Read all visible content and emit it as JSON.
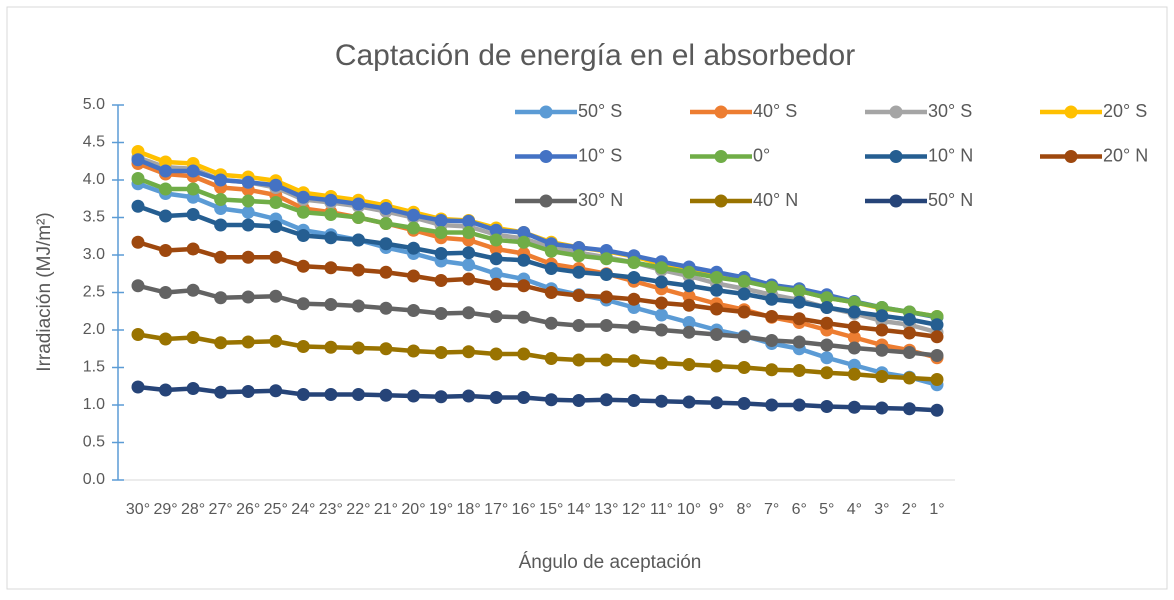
{
  "chart_data": {
    "type": "line",
    "title": "Captación de energía en el absorbedor",
    "x_label": "Ángulo de aceptación",
    "y_label": "Irradiación (MJ/m²)",
    "categories": [
      "30°",
      "29°",
      "28°",
      "27°",
      "26°",
      "25°",
      "24°",
      "23°",
      "22°",
      "21°",
      "20°",
      "19°",
      "18°",
      "17°",
      "16°",
      "15°",
      "14°",
      "13°",
      "12°",
      "11°",
      "10°",
      "9°",
      "8°",
      "7°",
      "6°",
      "5°",
      "4°",
      "3°",
      "2°",
      "1°"
    ],
    "ylim": [
      0,
      5
    ],
    "yticks": [
      {
        "value": 0,
        "label": "0.0"
      },
      0.5,
      {
        "value": 1,
        "label": "1.0"
      },
      1.5,
      {
        "value": 2,
        "label": "2.0"
      },
      2.5,
      {
        "value": 3,
        "label": "3.0"
      },
      3.5,
      {
        "value": 4,
        "label": "4.0"
      },
      4.5,
      {
        "value": 5,
        "label": "5.0"
      }
    ],
    "grid": false,
    "legend": "top-right",
    "series": [
      {
        "name": "50° S",
        "color": "#5b9bd5",
        "values": [
          3.95,
          3.82,
          3.77,
          3.62,
          3.57,
          3.48,
          3.33,
          3.27,
          3.2,
          3.1,
          3.02,
          2.92,
          2.87,
          2.75,
          2.68,
          2.55,
          2.47,
          2.4,
          2.3,
          2.2,
          2.1,
          2.0,
          1.92,
          1.82,
          1.75,
          1.63,
          1.53,
          1.43,
          1.37,
          1.27
        ]
      },
      {
        "name": "40° S",
        "color": "#ed7d31",
        "values": [
          4.22,
          4.08,
          4.05,
          3.9,
          3.87,
          3.8,
          3.62,
          3.57,
          3.5,
          3.42,
          3.33,
          3.23,
          3.2,
          3.08,
          3.02,
          2.88,
          2.82,
          2.75,
          2.65,
          2.55,
          2.45,
          2.35,
          2.27,
          2.17,
          2.1,
          2.0,
          1.9,
          1.8,
          1.73,
          1.63
        ]
      },
      {
        "name": "30° S",
        "color": "#a5a5a5",
        "values": [
          4.3,
          4.17,
          4.15,
          4.0,
          3.97,
          3.9,
          3.74,
          3.7,
          3.65,
          3.58,
          3.5,
          3.4,
          3.38,
          3.27,
          3.22,
          3.1,
          3.03,
          2.97,
          2.9,
          2.8,
          2.72,
          2.62,
          2.55,
          2.47,
          2.4,
          2.3,
          2.22,
          2.12,
          2.07,
          1.97
        ]
      },
      {
        "name": "20° S",
        "color": "#ffc000",
        "values": [
          4.38,
          4.24,
          4.22,
          4.07,
          4.04,
          3.99,
          3.83,
          3.78,
          3.73,
          3.66,
          3.57,
          3.48,
          3.46,
          3.36,
          3.3,
          3.17,
          3.1,
          3.05,
          2.98,
          2.88,
          2.82,
          2.74,
          2.68,
          2.58,
          2.52,
          2.43,
          2.37,
          2.29,
          2.24,
          2.18
        ]
      },
      {
        "name": "10° S",
        "color": "#4472c4",
        "values": [
          4.27,
          4.12,
          4.12,
          4.0,
          3.97,
          3.93,
          3.77,
          3.73,
          3.68,
          3.62,
          3.53,
          3.46,
          3.45,
          3.33,
          3.3,
          3.15,
          3.1,
          3.06,
          2.99,
          2.91,
          2.84,
          2.77,
          2.7,
          2.6,
          2.55,
          2.47,
          2.38,
          2.3,
          2.24,
          2.17
        ]
      },
      {
        "name": "0°",
        "color": "#70ad47",
        "values": [
          4.02,
          3.88,
          3.88,
          3.74,
          3.72,
          3.7,
          3.57,
          3.54,
          3.5,
          3.42,
          3.36,
          3.3,
          3.3,
          3.2,
          3.17,
          3.05,
          2.99,
          2.95,
          2.9,
          2.83,
          2.77,
          2.7,
          2.65,
          2.57,
          2.52,
          2.43,
          2.37,
          2.3,
          2.24,
          2.18
        ]
      },
      {
        "name": "10° N",
        "color": "#255e91",
        "values": [
          3.65,
          3.52,
          3.54,
          3.4,
          3.4,
          3.38,
          3.26,
          3.23,
          3.2,
          3.15,
          3.09,
          3.02,
          3.03,
          2.95,
          2.93,
          2.82,
          2.77,
          2.74,
          2.7,
          2.64,
          2.59,
          2.53,
          2.48,
          2.41,
          2.37,
          2.3,
          2.24,
          2.19,
          2.14,
          2.07
        ]
      },
      {
        "name": "20° N",
        "color": "#9e480e",
        "values": [
          3.17,
          3.06,
          3.08,
          2.97,
          2.97,
          2.97,
          2.85,
          2.83,
          2.8,
          2.77,
          2.72,
          2.66,
          2.68,
          2.61,
          2.59,
          2.5,
          2.46,
          2.44,
          2.41,
          2.36,
          2.33,
          2.28,
          2.24,
          2.18,
          2.15,
          2.09,
          2.04,
          2.0,
          1.96,
          1.91
        ]
      },
      {
        "name": "30° N",
        "color": "#636363",
        "values": [
          2.59,
          2.5,
          2.53,
          2.43,
          2.44,
          2.45,
          2.35,
          2.34,
          2.32,
          2.29,
          2.26,
          2.22,
          2.23,
          2.18,
          2.17,
          2.09,
          2.06,
          2.06,
          2.04,
          2.0,
          1.97,
          1.94,
          1.91,
          1.86,
          1.84,
          1.8,
          1.76,
          1.73,
          1.7,
          1.66
        ]
      },
      {
        "name": "40° N",
        "color": "#997300",
        "values": [
          1.94,
          1.88,
          1.9,
          1.83,
          1.84,
          1.85,
          1.78,
          1.77,
          1.76,
          1.75,
          1.72,
          1.7,
          1.71,
          1.68,
          1.68,
          1.62,
          1.6,
          1.6,
          1.59,
          1.56,
          1.54,
          1.52,
          1.5,
          1.47,
          1.46,
          1.43,
          1.41,
          1.38,
          1.36,
          1.34
        ]
      },
      {
        "name": "50° N",
        "color": "#264478",
        "values": [
          1.24,
          1.2,
          1.22,
          1.17,
          1.18,
          1.19,
          1.14,
          1.14,
          1.14,
          1.13,
          1.12,
          1.11,
          1.12,
          1.1,
          1.1,
          1.07,
          1.06,
          1.07,
          1.06,
          1.05,
          1.04,
          1.03,
          1.02,
          1.0,
          1.0,
          0.98,
          0.97,
          0.96,
          0.95,
          0.93
        ]
      }
    ]
  }
}
